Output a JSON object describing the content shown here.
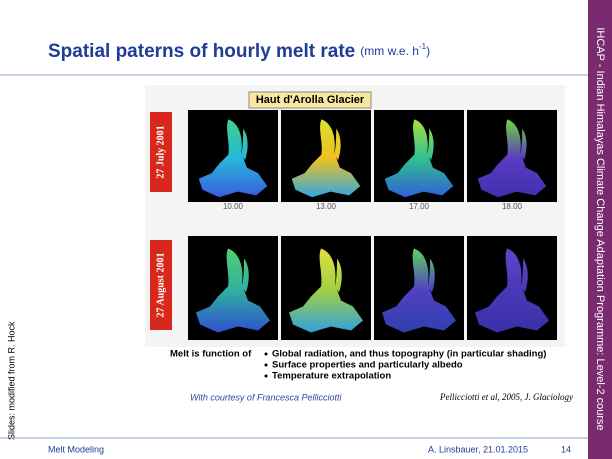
{
  "header": {
    "title": "Spatial paterns of hourly melt rate",
    "unit": "(mm w.e. h",
    "unit_sup": "-1",
    "unit_close": ")"
  },
  "sidebar": "IHCAP - Indian Himalayas Climate Change Adaptation Programme: Level-2 course",
  "credit": "Slides: modified from R. Hock",
  "figure": {
    "title": "Haut d'Arolla Glacier",
    "rows": [
      "27 July 2001",
      "27 August 2001"
    ],
    "times": [
      "10.00",
      "13.00",
      "17.00",
      "18.00"
    ]
  },
  "caption": {
    "lead": "Melt is function of",
    "bullets": [
      "Global radiation, and thus topography (in particular shading)",
      "Surface properties and particularly albedo",
      "Temperature extrapolation"
    ]
  },
  "courtesy": "With courtesy of Francesca Pellicciotti",
  "citation": "Pellicciotti et al, 2005, J. Glaciology",
  "footer": {
    "left": "Melt Modeling",
    "center": "A. Linsbauer, 21.01.2015",
    "page": "14"
  }
}
